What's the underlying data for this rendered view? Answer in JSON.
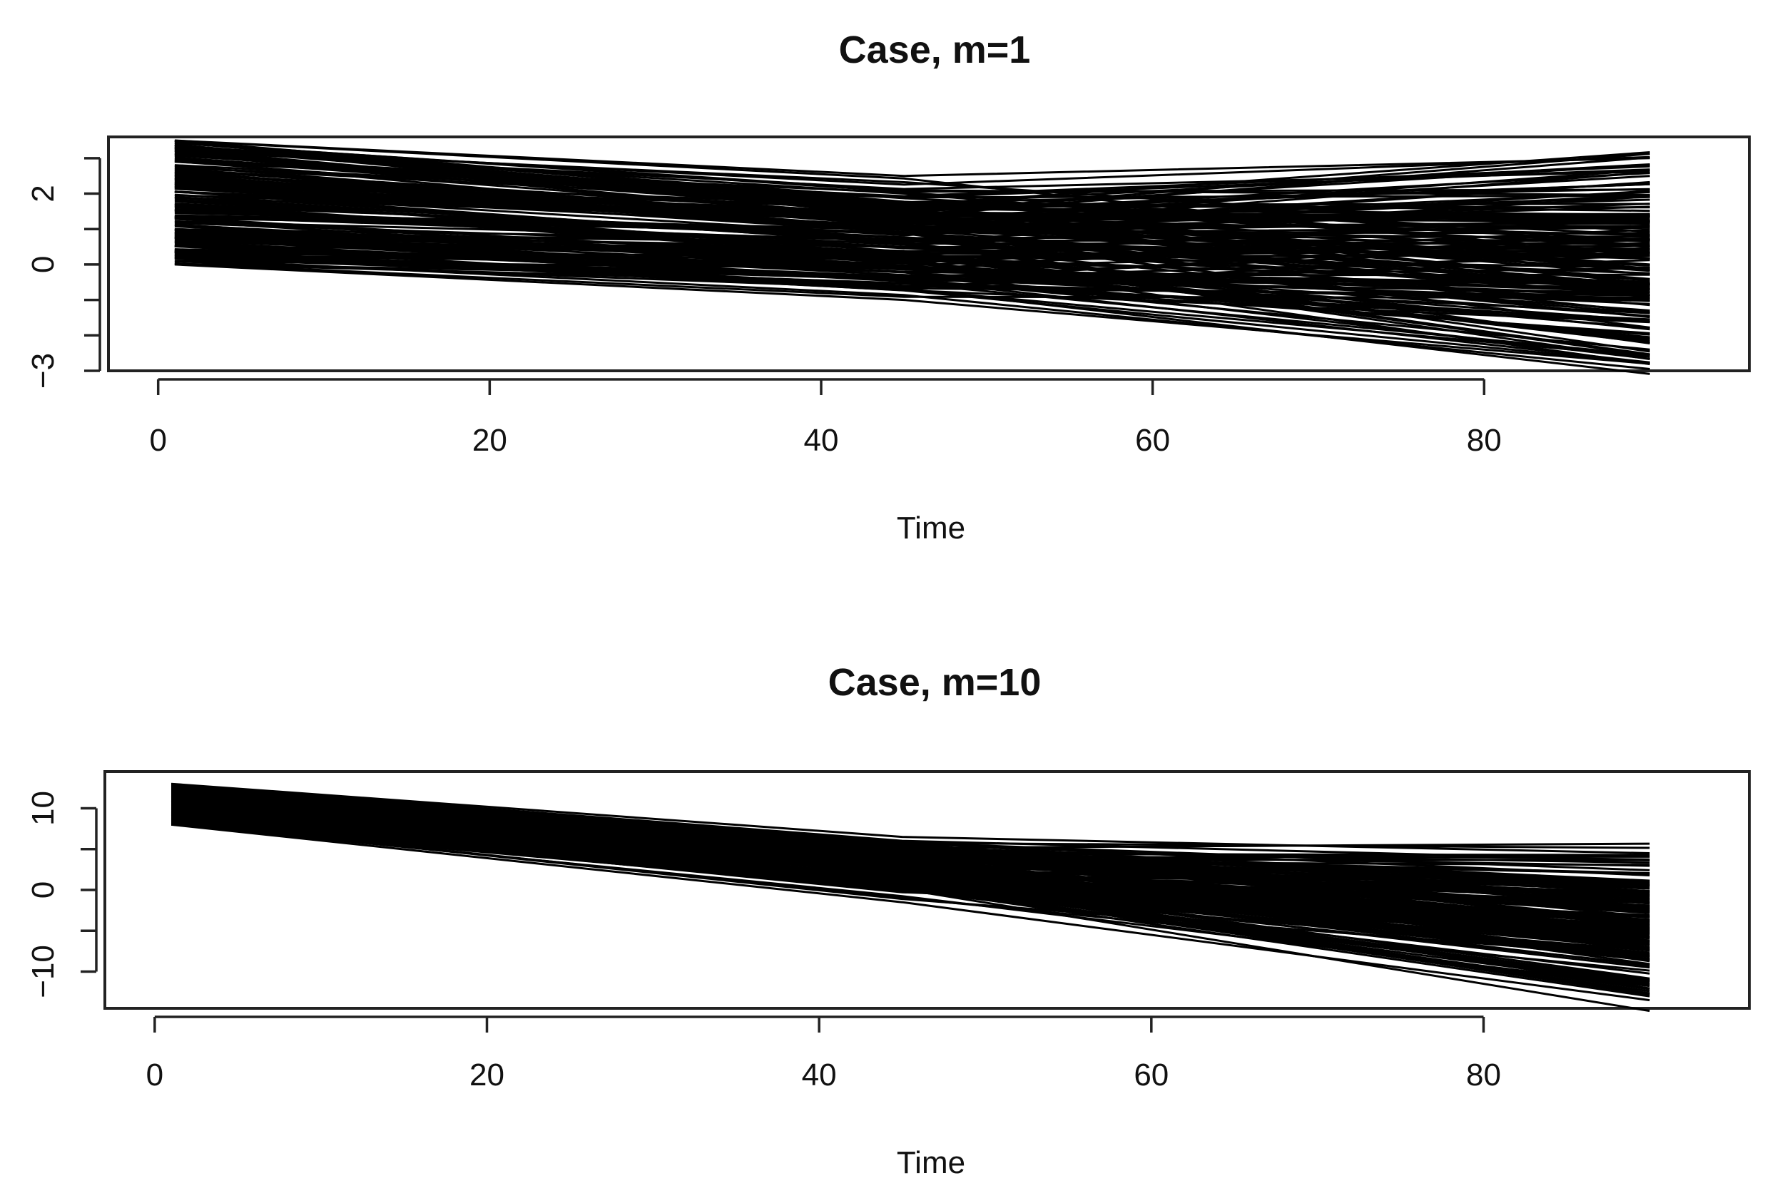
{
  "chart_data": [
    {
      "type": "line",
      "title": "Case, m=1",
      "xlabel": "Time",
      "ylabel": "",
      "xlim": [
        -3,
        96
      ],
      "ylim": [
        -3.0,
        3.6
      ],
      "x": [
        1,
        45,
        90
      ],
      "x_ticks": [
        0,
        20,
        40,
        60,
        80
      ],
      "x_tick_labels": [
        "0",
        "20",
        "40",
        "60",
        "80"
      ],
      "y_ticks": [
        -3,
        -2,
        -1,
        0,
        1,
        2,
        3
      ],
      "y_tick_labels": [
        "-3",
        "",
        "",
        "0",
        "",
        "2",
        ""
      ],
      "series_count": 160,
      "start_range": [
        0.0,
        3.5
      ],
      "mid_range": [
        -1.0,
        2.5
      ],
      "end_range": [
        -2.8,
        3.0
      ],
      "outer_series": [
        {
          "values": [
            3.5,
            2.5,
            3.0
          ]
        },
        {
          "values": [
            1.3,
            1.0,
            2.6
          ]
        },
        {
          "values": [
            0.8,
            0.1,
            -2.1
          ]
        },
        {
          "values": [
            0.6,
            -0.4,
            -2.4
          ]
        },
        {
          "values": [
            0.4,
            -0.7,
            -2.6
          ]
        },
        {
          "values": [
            0.0,
            -1.0,
            -2.8
          ]
        }
      ]
    },
    {
      "type": "line",
      "title": "Case, m=10",
      "xlabel": "Time",
      "ylabel": "",
      "xlim": [
        -3,
        96
      ],
      "ylim": [
        -14.5,
        14.5
      ],
      "x": [
        1,
        45,
        90
      ],
      "x_ticks": [
        0,
        20,
        40,
        60,
        80
      ],
      "x_tick_labels": [
        "0",
        "20",
        "40",
        "60",
        "80"
      ],
      "y_ticks": [
        -10,
        -5,
        0,
        5,
        10
      ],
      "y_tick_labels": [
        "-10",
        "",
        "0",
        "",
        "10"
      ],
      "series_count": 160,
      "start_range": [
        8.0,
        13.0
      ],
      "mid_range": [
        -1.5,
        6.5
      ],
      "end_range": [
        -13.5,
        4.5
      ],
      "outer_series": [
        {
          "values": [
            13.0,
            6.5,
            4.5
          ]
        },
        {
          "values": [
            8.0,
            -1.5,
            -13.5
          ]
        },
        {
          "values": [
            8.5,
            0.0,
            -11.0
          ]
        },
        {
          "values": [
            9.0,
            1.0,
            -9.5
          ]
        }
      ]
    }
  ]
}
